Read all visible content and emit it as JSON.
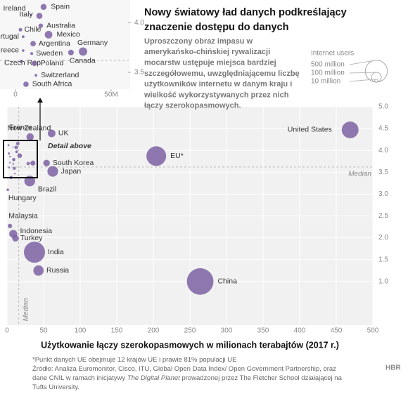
{
  "chart_data": {
    "type": "scatter",
    "title": [
      "Nowy światowy ład danych podkreślający",
      "znaczenie dostępu do danych"
    ],
    "subtitle": [
      "Uproszczony obraz impasu w",
      "amerykańsko-chińskiej rywalizacji",
      "mocarstw ustępuje miejsca bardziej",
      "szczegółowemu, uwzględniającemu liczbę",
      "użytkowników internetu w danym kraju i",
      "wielkość wykorzystywanych przez nich",
      "łączy szerokopasmowych."
    ],
    "x_label": "Użytkowanie łączy szerokopasmowych w milionach terabajtów (2017 r.)",
    "color": "#7d62a3",
    "xlim": [
      0,
      500
    ],
    "ylim": [
      0,
      5
    ],
    "xticks": [
      0,
      50,
      100,
      150,
      200,
      250,
      300,
      350,
      400,
      450,
      500
    ],
    "yticks": [
      {
        "value": 1,
        "label": "1.0"
      },
      1.5,
      {
        "value": 2,
        "label": "2.0"
      },
      2.5,
      {
        "value": 3,
        "label": "3.0"
      },
      3.5,
      {
        "value": 4,
        "label": "4.0"
      },
      4.5,
      {
        "value": 5,
        "label": "5.0"
      }
    ],
    "median_label": "Median",
    "median_x": 16,
    "median_y": 3.62,
    "detail_label": "Detail above",
    "points": [
      {
        "label": "United States",
        "x": 469,
        "y": 4.47,
        "size": 290
      },
      {
        "label": "EU*",
        "x": 204,
        "y": 3.87,
        "size": 400
      },
      {
        "label": "China",
        "x": 264,
        "y": 1.0,
        "size": 730
      },
      {
        "label": "India",
        "x": 37.5,
        "y": 1.67,
        "size": 460
      },
      {
        "label": "Russia",
        "x": 43,
        "y": 1.25,
        "size": 110
      },
      {
        "label": "UK",
        "x": 61,
        "y": 4.39,
        "size": 60
      },
      {
        "label": "South Korea",
        "x": 54,
        "y": 3.71,
        "size": 45
      },
      {
        "label": "Japan",
        "x": 62.5,
        "y": 3.52,
        "size": 118
      },
      {
        "label": "Brazil",
        "x": 31,
        "y": 3.3,
        "size": 120
      },
      {
        "label": "France",
        "x": 31.5,
        "y": 4.31,
        "size": 55
      },
      {
        "label": "Hungary",
        "x": 1,
        "y": 3.1,
        "size": 7
      },
      {
        "label": "Malaysia",
        "x": 4,
        "y": 2.27,
        "size": 20
      },
      {
        "label": "Indonesia",
        "x": 8.5,
        "y": 2.09,
        "size": 66
      },
      {
        "label": "Turkey",
        "x": 11.5,
        "y": 1.99,
        "size": 46
      },
      {
        "label": "New Zealand",
        "x": 2,
        "y": 4.12,
        "size": 4
      }
    ],
    "inset": {
      "xlim": [
        0,
        50
      ],
      "ylim": [
        3.33,
        4.23
      ],
      "xticks": [
        0,
        {
          "value": 50,
          "label": "50M"
        }
      ],
      "yticks": [
        3.5,
        {
          "value": 4,
          "label": "4.0"
        }
      ],
      "points": [
        {
          "label": "Ireland",
          "x": 8.1,
          "y": 4.08,
          "size": 4
        },
        {
          "label": "Spain",
          "x": 14.7,
          "y": 4.16,
          "size": 37
        },
        {
          "label": "Italy",
          "x": 12.5,
          "y": 4.07,
          "size": 38
        },
        {
          "label": "Australia",
          "x": 13.2,
          "y": 3.97,
          "size": 21
        },
        {
          "label": "Chile",
          "x": 2.6,
          "y": 3.93,
          "size": 13
        },
        {
          "label": "Mexico",
          "x": 17.3,
          "y": 3.88,
          "size": 60
        },
        {
          "label": "Portugal",
          "x": 4.0,
          "y": 3.86,
          "size": 8
        },
        {
          "label": "Argentina",
          "x": 9.2,
          "y": 3.79,
          "size": 31
        },
        {
          "label": "Germany",
          "x": 35.3,
          "y": 3.71,
          "size": 72
        },
        {
          "label": "Greece",
          "x": 4.0,
          "y": 3.72,
          "size": 7
        },
        {
          "label": "Sweden",
          "x": 8.5,
          "y": 3.69,
          "size": 9
        },
        {
          "label": "Canada",
          "x": 29,
          "y": 3.7,
          "size": 33
        },
        {
          "label": "Czech Rep.",
          "x": 2.9,
          "y": 3.61,
          "size": 9
        },
        {
          "label": "Poland",
          "x": 9.9,
          "y": 3.59,
          "size": 28
        },
        {
          "label": "Switzerland",
          "x": 10.7,
          "y": 3.47,
          "size": 8
        },
        {
          "label": "South Africa",
          "x": 5.5,
          "y": 3.38,
          "size": 30
        }
      ]
    },
    "size_legend": {
      "title": "Internet users",
      "entries": [
        {
          "value": 500,
          "label": "500 million"
        },
        {
          "value": 100,
          "label": "100 million"
        },
        {
          "value": 10,
          "label": "10 million"
        }
      ]
    },
    "footnote": {
      "note": "*Punkt danych UE obejmuje 12 krajów UE i prawie 81% populacji UE",
      "source": [
        "Źródło: Analiza Euromonitor, Cisco, ITU, Global Open Data Index/ Open Government Partnership, oraz",
        "dane CNIL w ramach inicjatywy",
        "The Digital Planet",
        "prowadzonej przez The Fletcher School działającej na",
        "Tufts University."
      ]
    },
    "logo": "HBR"
  }
}
